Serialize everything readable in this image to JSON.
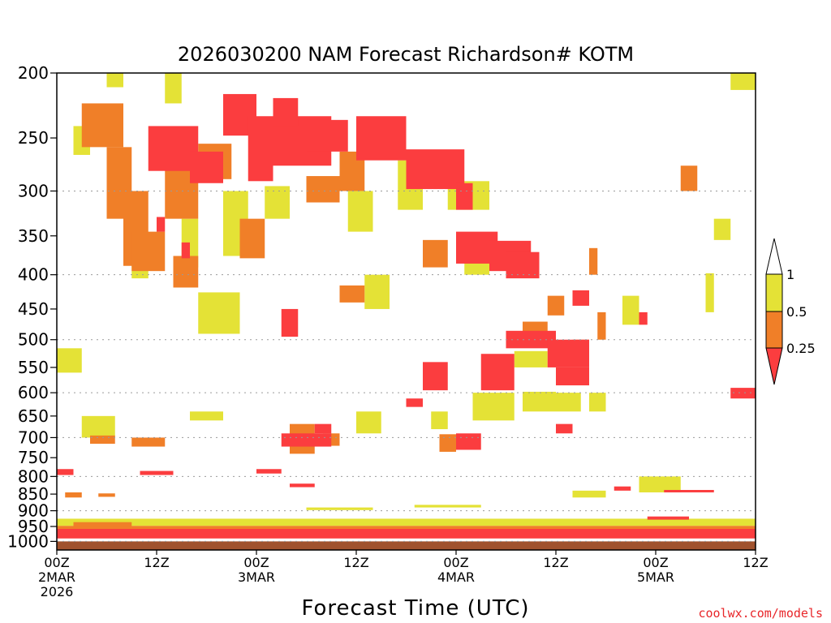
{
  "chart_data": {
    "type": "heatmap",
    "title": "2026030200 NAM Forecast Richardson# KOTM",
    "xlabel": "Forecast Time (UTC)",
    "ylabel": "",
    "credit": "coolwx.com/models",
    "x_range_hours": [
      0,
      84
    ],
    "y_axis": {
      "scale": "log-pressure",
      "range_hPa": [
        200,
        1000
      ],
      "ticks": [
        200,
        250,
        300,
        350,
        400,
        450,
        500,
        550,
        600,
        650,
        700,
        750,
        800,
        850,
        900,
        950,
        1000
      ],
      "tick_labels": [
        "200",
        "250",
        "300",
        "350",
        "400",
        "450",
        "500",
        "550",
        "600",
        "650",
        "700",
        "750",
        "800",
        "850",
        "900",
        "950",
        "1000"
      ],
      "gridlines_hPa": [
        300,
        400,
        500,
        600,
        700,
        800,
        900,
        1000
      ]
    },
    "x_ticks": [
      {
        "hour": 0,
        "lines": [
          "00Z",
          "2MAR",
          "2026"
        ]
      },
      {
        "hour": 12,
        "lines": [
          "12Z"
        ]
      },
      {
        "hour": 24,
        "lines": [
          "00Z",
          "3MAR"
        ]
      },
      {
        "hour": 36,
        "lines": [
          "12Z"
        ]
      },
      {
        "hour": 48,
        "lines": [
          "00Z",
          "4MAR"
        ]
      },
      {
        "hour": 60,
        "lines": [
          "12Z"
        ]
      },
      {
        "hour": 72,
        "lines": [
          "00Z",
          "5MAR"
        ]
      },
      {
        "hour": 84,
        "lines": [
          "12Z"
        ]
      }
    ],
    "legend": {
      "position": "right",
      "bins": [
        {
          "label": "1",
          "from": 0.5,
          "to": 1,
          "color": "#e4e236"
        },
        {
          "label": "0.5",
          "from": 0.25,
          "to": 0.5,
          "color": "#f07f28"
        },
        {
          "label": "0.25",
          "from": 0,
          "to": 0.25,
          "color": "#fb3d3f"
        }
      ]
    },
    "colors": {
      "lt_0.25": "#fb3d3f",
      "0.25_0.5": "#f07f28",
      "0.5_1": "#e4e236",
      "ground": "#a0522d",
      "grid": "#9a9a9a"
    },
    "series": [
      {
        "name": "Ri < 0.25",
        "cells": [
          {
            "hours": [
              11,
              17
            ],
            "pres": [
              240,
              280
            ]
          },
          {
            "hours": [
              16,
              20
            ],
            "pres": [
              262,
              292
            ]
          },
          {
            "hours": [
              20,
              24
            ],
            "pres": [
              215,
              248
            ]
          },
          {
            "hours": [
              23,
              26
            ],
            "pres": [
              232,
              290
            ]
          },
          {
            "hours": [
              26,
              33
            ],
            "pres": [
              232,
              275
            ]
          },
          {
            "hours": [
              26,
              29
            ],
            "pres": [
              218,
              240
            ]
          },
          {
            "hours": [
              30,
              35
            ],
            "pres": [
              235,
              262
            ]
          },
          {
            "hours": [
              36,
              42
            ],
            "pres": [
              232,
              270
            ]
          },
          {
            "hours": [
              42,
              49
            ],
            "pres": [
              260,
              298
            ]
          },
          {
            "hours": [
              48,
              50
            ],
            "pres": [
              292,
              320
            ]
          },
          {
            "hours": [
              48,
              53
            ],
            "pres": [
              345,
              385
            ]
          },
          {
            "hours": [
              52,
              57
            ],
            "pres": [
              356,
              395
            ]
          },
          {
            "hours": [
              54,
              58
            ],
            "pres": [
              370,
              405
            ]
          },
          {
            "hours": [
              15,
              16
            ],
            "pres": [
              358,
              378
            ]
          },
          {
            "hours": [
              12,
              13
            ],
            "pres": [
              328,
              345
            ]
          },
          {
            "hours": [
              27,
              29
            ],
            "pres": [
              450,
              495
            ]
          },
          {
            "hours": [
              54,
              60
            ],
            "pres": [
              485,
              515
            ]
          },
          {
            "hours": [
              59,
              64
            ],
            "pres": [
              500,
              550
            ]
          },
          {
            "hours": [
              60,
              64
            ],
            "pres": [
              550,
              585
            ]
          },
          {
            "hours": [
              51,
              55
            ],
            "pres": [
              525,
              595
            ]
          },
          {
            "hours": [
              44,
              47
            ],
            "pres": [
              540,
              595
            ]
          },
          {
            "hours": [
              62,
              64
            ],
            "pres": [
              422,
              445
            ]
          },
          {
            "hours": [
              70,
              71
            ],
            "pres": [
              455,
              475
            ]
          },
          {
            "hours": [
              81,
              84
            ],
            "pres": [
              590,
              612
            ]
          },
          {
            "hours": [
              27,
              33
            ],
            "pres": [
              690,
              722
            ]
          },
          {
            "hours": [
              31,
              33
            ],
            "pres": [
              668,
              690
            ]
          },
          {
            "hours": [
              48,
              51
            ],
            "pres": [
              690,
              730
            ]
          },
          {
            "hours": [
              60,
              62
            ],
            "pres": [
              668,
              690
            ]
          },
          {
            "hours": [
              42,
              44
            ],
            "pres": [
              612,
              630
            ]
          },
          {
            "hours": [
              10,
              14
            ],
            "pres": [
              785,
              796
            ]
          },
          {
            "hours": [
              24,
              27
            ],
            "pres": [
              780,
              792
            ]
          },
          {
            "hours": [
              0,
              2
            ],
            "pres": [
              780,
              796
            ]
          },
          {
            "hours": [
              28,
              31
            ],
            "pres": [
              820,
              830
            ]
          },
          {
            "hours": [
              67,
              69
            ],
            "pres": [
              828,
              840
            ]
          },
          {
            "hours": [
              73,
              79
            ],
            "pres": [
              838,
              845
            ]
          },
          {
            "hours": [
              71,
              76
            ],
            "pres": [
              918,
              928
            ]
          },
          {
            "hours": [
              0,
              84
            ],
            "pres": [
              958,
              990
            ]
          }
        ]
      },
      {
        "name": "0.25 <= Ri < 0.5",
        "cells": [
          {
            "hours": [
              3,
              8
            ],
            "pres": [
              222,
              258
            ]
          },
          {
            "hours": [
              6,
              9
            ],
            "pres": [
              258,
              330
            ]
          },
          {
            "hours": [
              8,
              11
            ],
            "pres": [
              300,
              388
            ]
          },
          {
            "hours": [
              9,
              13
            ],
            "pres": [
              345,
              395
            ]
          },
          {
            "hours": [
              13,
              17
            ],
            "pres": [
              265,
              330
            ]
          },
          {
            "hours": [
              14,
              17
            ],
            "pres": [
              375,
              418
            ]
          },
          {
            "hours": [
              17,
              21
            ],
            "pres": [
              255,
              288
            ]
          },
          {
            "hours": [
              22,
              25
            ],
            "pres": [
              330,
              378
            ]
          },
          {
            "hours": [
              30,
              34
            ],
            "pres": [
              285,
              312
            ]
          },
          {
            "hours": [
              34,
              37
            ],
            "pres": [
              262,
              300
            ]
          },
          {
            "hours": [
              34,
              37
            ],
            "pres": [
              415,
              440
            ]
          },
          {
            "hours": [
              44,
              47
            ],
            "pres": [
              355,
              390
            ]
          },
          {
            "hours": [
              56,
              59
            ],
            "pres": [
              470,
              500
            ]
          },
          {
            "hours": [
              59,
              61
            ],
            "pres": [
              430,
              460
            ]
          },
          {
            "hours": [
              62,
              64
            ],
            "pres": [
              500,
              530
            ]
          },
          {
            "hours": [
              65,
              66
            ],
            "pres": [
              455,
              500
            ]
          },
          {
            "hours": [
              75,
              77
            ],
            "pres": [
              275,
              300
            ]
          },
          {
            "hours": [
              64,
              65
            ],
            "pres": [
              365,
              400
            ]
          },
          {
            "hours": [
              28,
              31
            ],
            "pres": [
              668,
              740
            ]
          },
          {
            "hours": [
              32,
              34
            ],
            "pres": [
              690,
              720
            ]
          },
          {
            "hours": [
              46,
              48
            ],
            "pres": [
              692,
              735
            ]
          },
          {
            "hours": [
              4,
              7
            ],
            "pres": [
              695,
              715
            ]
          },
          {
            "hours": [
              9,
              13
            ],
            "pres": [
              700,
              722
            ]
          },
          {
            "hours": [
              1,
              3
            ],
            "pres": [
              845,
              860
            ]
          },
          {
            "hours": [
              5,
              7
            ],
            "pres": [
              848,
              858
            ]
          },
          {
            "hours": [
              2,
              9
            ],
            "pres": [
              936,
              950
            ]
          },
          {
            "hours": [
              0,
              84
            ],
            "pres": [
              948,
              958
            ]
          }
        ]
      },
      {
        "name": "0.5 <= Ri < 1",
        "cells": [
          {
            "hours": [
              6,
              8
            ],
            "pres": [
              200,
              210
            ]
          },
          {
            "hours": [
              13,
              15
            ],
            "pres": [
              200,
              222
            ]
          },
          {
            "hours": [
              2,
              4
            ],
            "pres": [
              240,
              265
            ]
          },
          {
            "hours": [
              15,
              17
            ],
            "pres": [
              330,
              390
            ]
          },
          {
            "hours": [
              9,
              11
            ],
            "pres": [
              365,
              405
            ]
          },
          {
            "hours": [
              17,
              22
            ],
            "pres": [
              425,
              490
            ]
          },
          {
            "hours": [
              20,
              23
            ],
            "pres": [
              300,
              375
            ]
          },
          {
            "hours": [
              25,
              28
            ],
            "pres": [
              295,
              330
            ]
          },
          {
            "hours": [
              35,
              38
            ],
            "pres": [
              300,
              345
            ]
          },
          {
            "hours": [
              37,
              40
            ],
            "pres": [
              400,
              450
            ]
          },
          {
            "hours": [
              41,
              44
            ],
            "pres": [
              270,
              320
            ]
          },
          {
            "hours": [
              47,
              52
            ],
            "pres": [
              290,
              320
            ]
          },
          {
            "hours": [
              49,
              52
            ],
            "pres": [
              360,
              400
            ]
          },
          {
            "hours": [
              55,
              59
            ],
            "pres": [
              520,
              550
            ]
          },
          {
            "hours": [
              56,
              60
            ],
            "pres": [
              598,
              640
            ]
          },
          {
            "hours": [
              64,
              66
            ],
            "pres": [
              600,
              640
            ]
          },
          {
            "hours": [
              68,
              70
            ],
            "pres": [
              430,
              475
            ]
          },
          {
            "hours": [
              81,
              84
            ],
            "pres": [
              200,
              212
            ]
          },
          {
            "hours": [
              79,
              81
            ],
            "pres": [
              330,
              355
            ]
          },
          {
            "hours": [
              78,
              79
            ],
            "pres": [
              398,
              455
            ]
          },
          {
            "hours": [
              3,
              7
            ],
            "pres": [
              650,
              700
            ]
          },
          {
            "hours": [
              0,
              3
            ],
            "pres": [
              515,
              560
            ]
          },
          {
            "hours": [
              16,
              20
            ],
            "pres": [
              640,
              660
            ]
          },
          {
            "hours": [
              36,
              39
            ],
            "pres": [
              640,
              690
            ]
          },
          {
            "hours": [
              45,
              47
            ],
            "pres": [
              640,
              680
            ]
          },
          {
            "hours": [
              50,
              55
            ],
            "pres": [
              600,
              660
            ]
          },
          {
            "hours": [
              60,
              63
            ],
            "pres": [
              600,
              640
            ]
          },
          {
            "hours": [
              70,
              75
            ],
            "pres": [
              800,
              845
            ]
          },
          {
            "hours": [
              62,
              66
            ],
            "pres": [
              840,
              860
            ]
          },
          {
            "hours": [
              30,
              38
            ],
            "pres": [
              890,
              898
            ]
          },
          {
            "hours": [
              43,
              51
            ],
            "pres": [
              882,
              890
            ]
          },
          {
            "hours": [
              0,
              84
            ],
            "pres": [
              925,
              948
            ]
          }
        ]
      }
    ]
  }
}
